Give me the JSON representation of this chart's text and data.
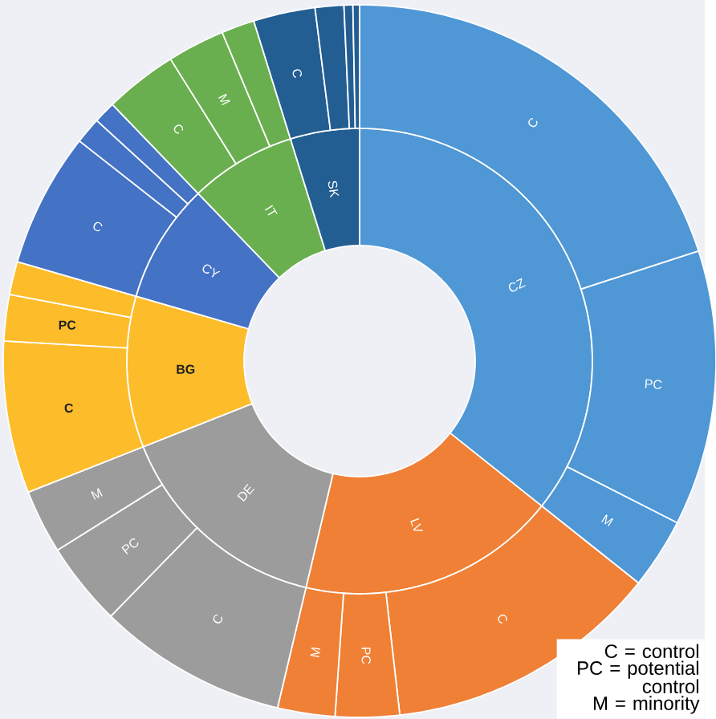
{
  "chart_data": [
    {
      "type": "donut",
      "categories": [
        "CZ",
        "LV",
        "DE",
        "BG",
        "CY",
        "IT",
        "SK"
      ],
      "values": [
        35.7,
        18,
        15.3,
        10.5,
        8.3,
        7.4,
        4.8
      ],
      "colors": [
        "#4f97d5",
        "#ef8036",
        "#9c9c9c",
        "#fdbc2a",
        "#4472c4",
        "#6aaf4f",
        "#235e92"
      ]
    },
    {
      "type": "donut",
      "categories": [
        "C",
        "PC",
        "M",
        "C",
        "PC",
        "M",
        "C",
        "PC",
        "M",
        "C",
        "PC",
        null,
        "C",
        null,
        null,
        "C",
        "M",
        null,
        "C",
        null,
        null,
        null
      ],
      "values": [
        20,
        12.5,
        3.2,
        12.5,
        2.9,
        2.6,
        8.6,
        3.8,
        2.9,
        6.9,
        2.1,
        1.5,
        6.1,
        1.2,
        1.0,
        3.3,
        2.6,
        1.5,
        2.8,
        1.3,
        0.4,
        0.3
      ],
      "colors": [
        "#4f97d5",
        "#4f97d5",
        "#4f97d5",
        "#ef8036",
        "#ef8036",
        "#ef8036",
        "#9c9c9c",
        "#9c9c9c",
        "#9c9c9c",
        "#fdbc2a",
        "#fdbc2a",
        "#fdbc2a",
        "#4472c4",
        "#4472c4",
        "#4472c4",
        "#6aaf4f",
        "#6aaf4f",
        "#6aaf4f",
        "#235e92",
        "#235e92",
        "#235e92",
        "#235e92"
      ],
      "annotations": [
        "C = control",
        "PC = potential control",
        "M = minority"
      ]
    }
  ]
}
